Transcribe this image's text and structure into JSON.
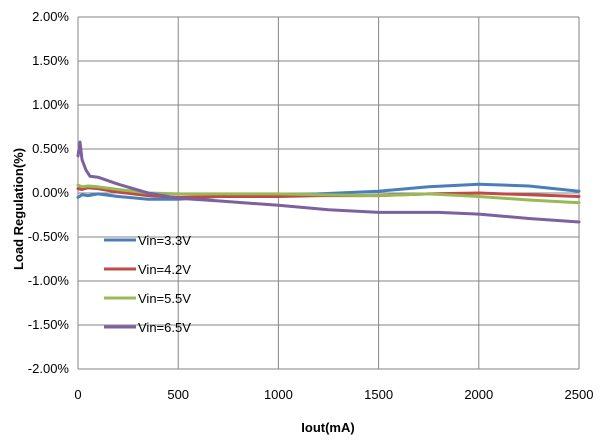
{
  "chart_data": {
    "type": "line",
    "title": "",
    "xlabel": "Iout(mA)",
    "ylabel": "Load Regulation(%)",
    "xlim": [
      0,
      2500
    ],
    "ylim": [
      -2.0,
      2.0
    ],
    "x_ticks": [
      0,
      500,
      1000,
      1500,
      2000,
      2500
    ],
    "x_tick_labels": [
      "0",
      "500",
      "1000",
      "1500",
      "2000",
      "2500"
    ],
    "y_ticks": [
      2.0,
      1.5,
      1.0,
      0.5,
      0.0,
      -0.5,
      -1.0,
      -1.5,
      -2.0
    ],
    "y_tick_labels": [
      "2.00%",
      "1.50%",
      "1.00%",
      "0.50%",
      "0.00%",
      "-0.50%",
      "-1.00%",
      "-1.50%",
      "-2.00%"
    ],
    "grid": true,
    "legend_position": "left",
    "series": [
      {
        "name": "Vin=3.3V",
        "color": "#4A7EBB",
        "x": [
          0,
          20,
          50,
          100,
          200,
          350,
          500,
          700,
          1000,
          1200,
          1500,
          1750,
          2000,
          2250,
          2500
        ],
        "y": [
          -0.05,
          -0.02,
          -0.03,
          -0.01,
          -0.04,
          -0.07,
          -0.07,
          -0.04,
          -0.03,
          -0.01,
          0.02,
          0.07,
          0.1,
          0.08,
          0.02
        ]
      },
      {
        "name": "Vin=4.2V",
        "color": "#BE4B48",
        "x": [
          0,
          20,
          50,
          100,
          200,
          350,
          500,
          700,
          1000,
          1200,
          1500,
          1750,
          2000,
          2250,
          2500
        ],
        "y": [
          0.05,
          0.04,
          0.06,
          0.05,
          0.01,
          -0.03,
          -0.05,
          -0.04,
          -0.04,
          -0.03,
          -0.03,
          -0.01,
          0.0,
          -0.02,
          -0.04
        ]
      },
      {
        "name": "Vin=5.5V",
        "color": "#98B954",
        "x": [
          0,
          20,
          50,
          100,
          200,
          350,
          500,
          700,
          1000,
          1200,
          1500,
          1750,
          2000,
          2250,
          2500
        ],
        "y": [
          0.09,
          0.07,
          0.08,
          0.07,
          0.04,
          0.0,
          -0.01,
          -0.01,
          -0.01,
          -0.02,
          -0.03,
          -0.01,
          -0.04,
          -0.08,
          -0.11
        ]
      },
      {
        "name": "Vin=6.5V",
        "color": "#7D60A0",
        "x": [
          0,
          10,
          20,
          40,
          60,
          100,
          200,
          350,
          500,
          700,
          1000,
          1250,
          1500,
          1600,
          1800,
          2000,
          2250,
          2500
        ],
        "y": [
          0.42,
          0.58,
          0.38,
          0.26,
          0.19,
          0.18,
          0.1,
          0.0,
          -0.06,
          -0.09,
          -0.14,
          -0.19,
          -0.22,
          -0.22,
          -0.22,
          -0.24,
          -0.29,
          -0.33
        ]
      }
    ]
  }
}
